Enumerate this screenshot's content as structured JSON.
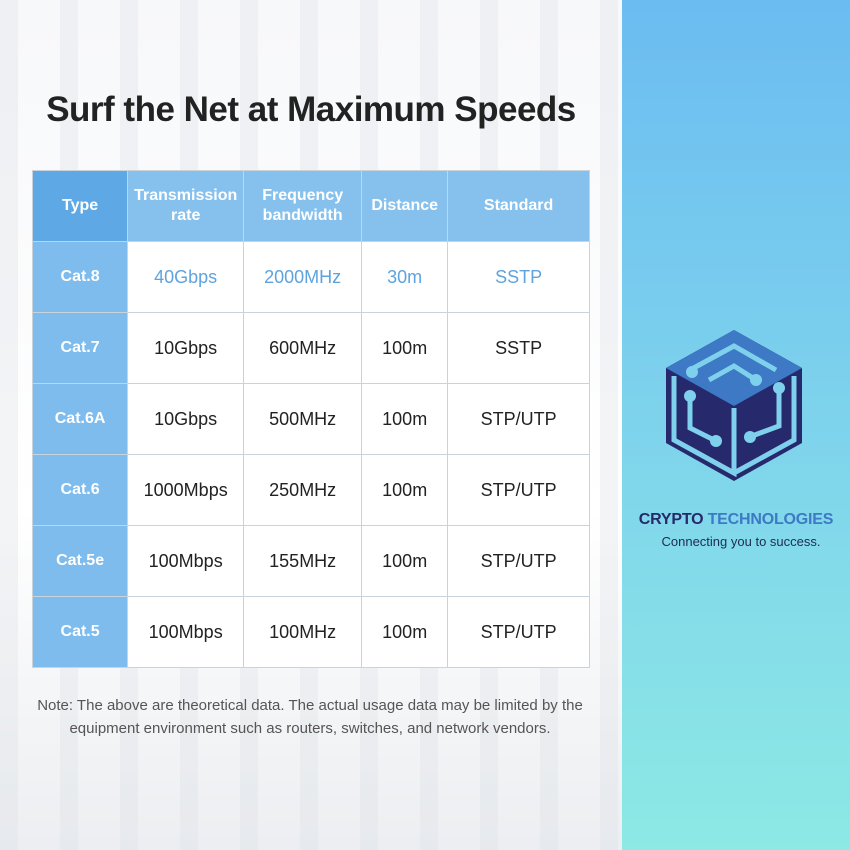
{
  "title": "Surf the Net at Maximum Speeds",
  "table": {
    "headers": [
      "Type",
      "Transmission rate",
      "Frequency bandwidth",
      "Distance",
      "Standard"
    ],
    "rows": [
      [
        "Cat.8",
        "40Gbps",
        "2000MHz",
        "30m",
        "SSTP"
      ],
      [
        "Cat.7",
        "10Gbps",
        "600MHz",
        "100m",
        "SSTP"
      ],
      [
        "Cat.6A",
        "10Gbps",
        "500MHz",
        "100m",
        "STP/UTP"
      ],
      [
        "Cat.6",
        "1000Mbps",
        "250MHz",
        "100m",
        "STP/UTP"
      ],
      [
        "Cat.5e",
        "100Mbps",
        "155MHz",
        "100m",
        "STP/UTP"
      ],
      [
        "Cat.5",
        "100Mbps",
        "100MHz",
        "100m",
        "STP/UTP"
      ]
    ]
  },
  "note": "Note: The above are theoretical data. The actual usage data may be limited by the equipment environment such as routers, switches, and network vendors.",
  "brand": {
    "name_part1": "CRYPTO",
    "name_part2": "TECHNOLOGIES",
    "tagline": "Connecting you to success."
  },
  "colors": {
    "header": "#86c1ee",
    "highlight_text": "#5ea3de",
    "logo_dark": "#26296b",
    "logo_light": "#3d79c4"
  }
}
